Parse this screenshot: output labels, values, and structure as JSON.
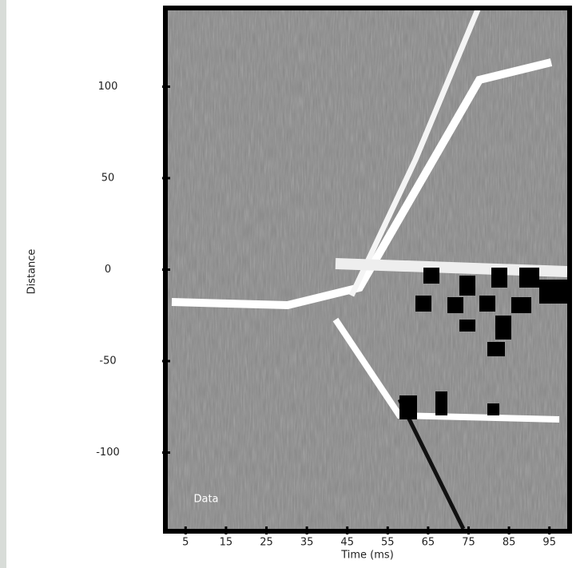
{
  "chart_data": {
    "type": "image",
    "title": "",
    "ylabel": "Distance",
    "xlabel": "Time (ms)",
    "annotation": "Data",
    "xlim": [
      0,
      100
    ],
    "xticks": [
      5,
      15,
      25,
      35,
      45,
      55,
      65,
      75,
      85,
      95
    ],
    "ylim": [
      -143,
      143
    ],
    "yticks": [
      100,
      50,
      0,
      -50,
      -100
    ]
  }
}
